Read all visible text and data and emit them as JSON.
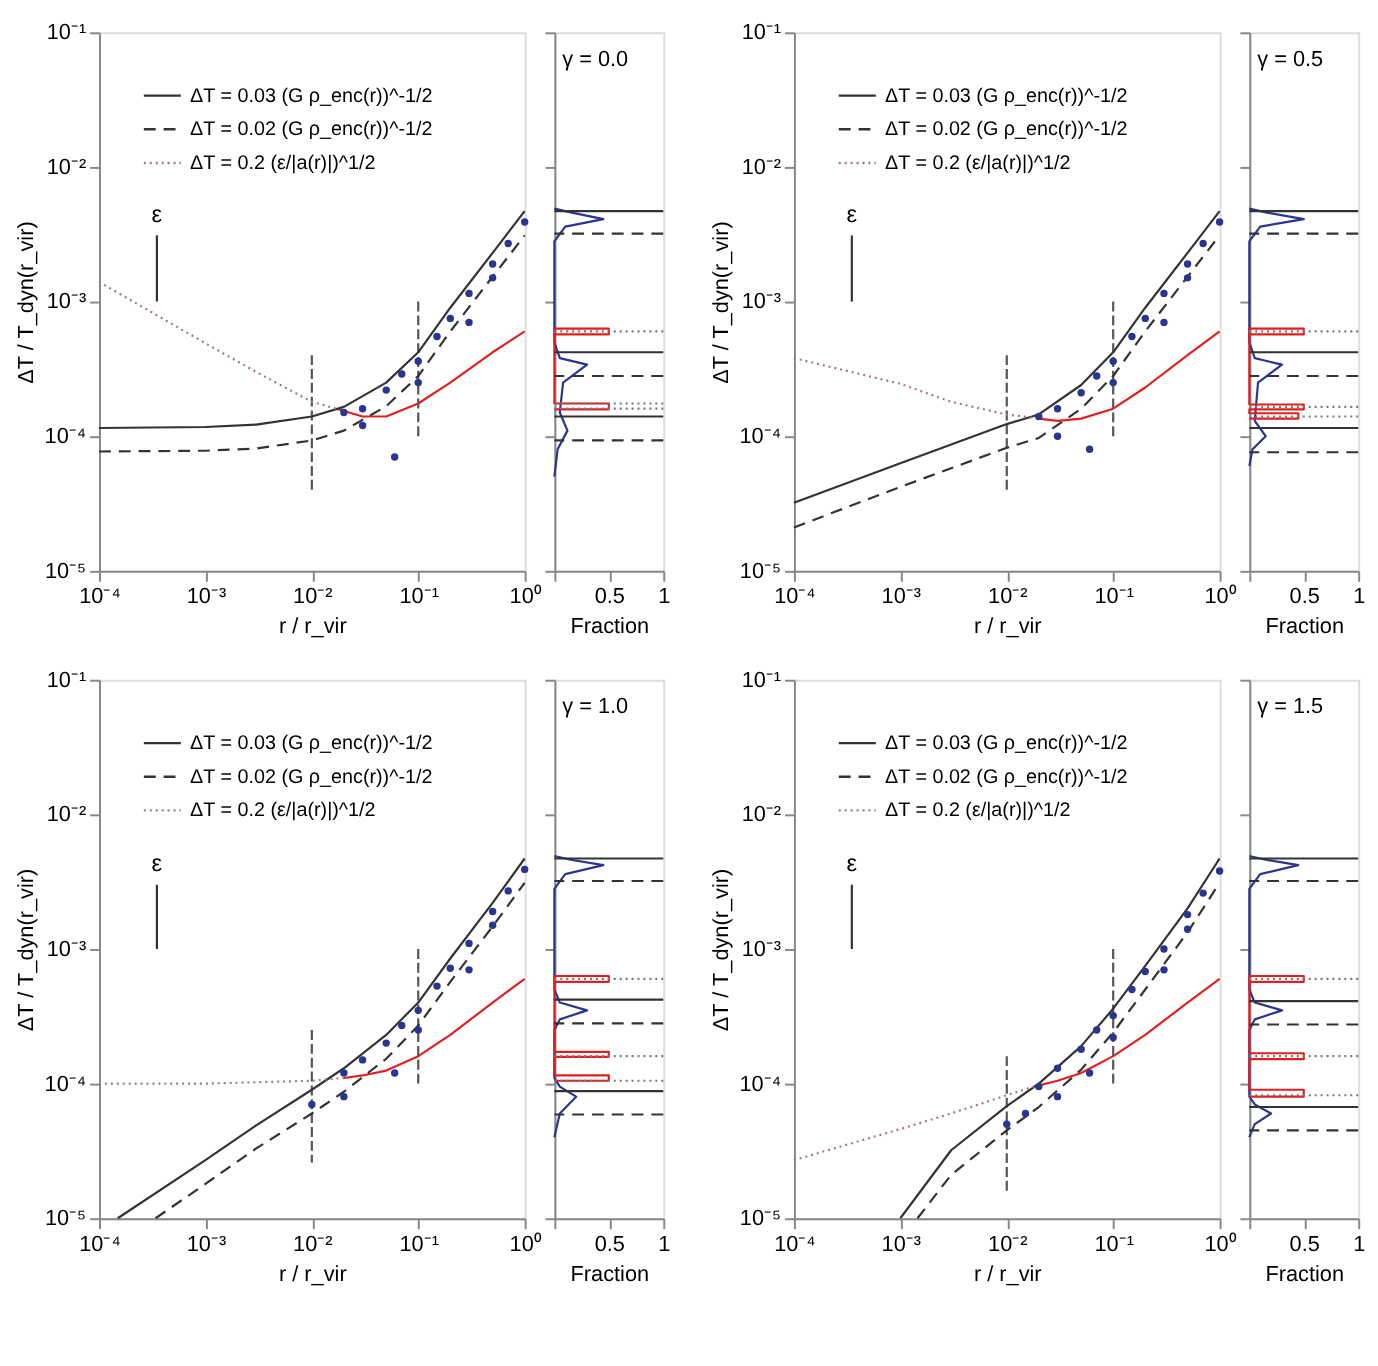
{
  "chart_data": [
    {
      "type": "line",
      "xlabel": "r / r_vir",
      "ylabel": "ΔT / T_dyn(r_vir)",
      "log": "xy",
      "legend": "top left",
      "xlim": [
        0.0001,
        1
      ],
      "ylim": [
        1e-05,
        0.1
      ],
      "xticks": [
        {
          "value": 0.0001,
          "label": "10⁻⁴"
        },
        {
          "value": 0.001,
          "label": "10⁻³"
        },
        {
          "value": 0.01,
          "label": "10⁻²"
        },
        {
          "value": 0.1,
          "label": "10⁻¹"
        },
        {
          "value": 1,
          "label": "10⁰"
        }
      ],
      "yticks": [
        {
          "value": 1e-05,
          "label": "10⁻⁵"
        },
        {
          "value": 0.0001,
          "label": "10⁻⁴"
        },
        {
          "value": 0.001,
          "label": "10⁻³"
        },
        {
          "value": 0.01,
          "label": "10⁻²"
        },
        {
          "value": 0.1,
          "label": "10⁻¹"
        }
      ],
      "series": [
        {
          "name": "ΔT = 0.03 (G ρ_enc(r))^-1/2",
          "color": "#333333",
          "line_style": "solid",
          "x": [
            0.0001,
            0.001,
            0.003,
            0.01,
            0.02,
            0.05,
            0.1,
            0.2,
            0.5,
            1
          ],
          "values": [
            0.000115,
            0.000117,
            0.000122,
            0.00014,
            0.000165,
            0.00025,
            0.00042,
            0.0009,
            0.0023,
            0.0047
          ]
        },
        {
          "name": "ΔT = 0.02 (G ρ_enc(r))^-1/2",
          "color": "#333333",
          "line_style": "dashed",
          "x": [
            0.0001,
            0.001,
            0.003,
            0.01,
            0.02,
            0.05,
            0.1,
            0.2,
            0.5,
            1
          ],
          "values": [
            7.7e-05,
            7.8e-05,
            8.1e-05,
            9.3e-05,
            0.00011,
            0.000167,
            0.00028,
            0.0006,
            0.00153,
            0.0031
          ]
        },
        {
          "name": "ΔT = 0.2 (ε/|a(r)|)^1/2",
          "color": "#aa7777",
          "line_style": "dotted",
          "x": [
            0.0001,
            0.001,
            0.003,
            0.01,
            0.017
          ],
          "values": [
            0.0014,
            0.00049,
            0.0003,
            0.00018,
            0.00016
          ]
        },
        {
          "type": "scatter",
          "color": "#2a3590",
          "x": [
            0.02,
            0.03,
            0.05,
            0.07,
            0.1,
            0.15,
            0.2,
            0.3,
            0.5,
            0.7,
            1,
            0.03,
            0.06,
            0.1,
            0.3,
            0.5
          ],
          "values": [
            0.00015,
            0.00016,
            0.00022,
            0.00029,
            0.00036,
            0.00055,
            0.00075,
            0.00115,
            0.0019,
            0.0027,
            0.0039,
            0.00012,
            7e-05,
            0.00025,
            0.0007,
            0.0015
          ]
        },
        {
          "color": "#e02020",
          "line_style": "solid",
          "x": [
            0.017,
            0.03,
            0.05,
            0.1,
            0.2,
            0.5,
            1
          ],
          "values": [
            0.00016,
            0.00014,
            0.00014,
            0.000175,
            0.00025,
            0.00042,
            0.0006
          ]
        },
        {
          "color": "#555555",
          "line_style": "dashed",
          "x": [
            0.01,
            0.01
          ],
          "values": [
            0.0004,
            4e-05
          ]
        },
        {
          "color": "#555555",
          "line_style": "dashed",
          "x": [
            0.1,
            0.1
          ],
          "values": [
            0.001,
            0.0001
          ]
        },
        {
          "color": "#333333",
          "line_style": "solid",
          "x": [
            0.00035,
            0.00035
          ],
          "values": [
            0.001,
            0.0031
          ]
        }
      ],
      "annotations": [
        "ε"
      ]
    },
    {
      "type": "line",
      "xlabel": "Fraction",
      "log": "y",
      "tick_labels": "x",
      "xlim": [
        0,
        1
      ],
      "ylim": [
        1e-05,
        0.1
      ],
      "xticks": [
        {
          "value": 0,
          "label": null
        },
        0.5,
        1
      ],
      "yticks": [
        {
          "value": 1e-05,
          "label": null
        },
        {
          "value": 0.0001,
          "label": null
        },
        {
          "value": 0.001,
          "label": null
        },
        {
          "value": 0.01,
          "label": null
        },
        {
          "value": 0.1,
          "label": null
        }
      ],
      "series": [
        {
          "color": "#2a3590",
          "line_style": "solid",
          "x": [
            0,
            0.03,
            0.12,
            0.05,
            0.08,
            0.3,
            0.05,
            0,
            0,
            0.1,
            0.45,
            0.15,
            0
          ],
          "values": [
            5e-05,
            8e-05,
            0.00011,
            0.00015,
            0.00025,
            0.00034,
            0.00038,
            0.0005,
            0.0028,
            0.0036,
            0.0041,
            0.0046,
            0.0049
          ]
        },
        {
          "color": "#e02020",
          "line_style": "solid",
          "x": [
            0,
            0.5,
            0.5,
            0,
            0,
            0.5,
            0.5,
            0
          ],
          "values": [
            0.00057,
            0.00057,
            0.00063,
            0.00063,
            0.000175,
            0.000175,
            0.000158,
            0.000158
          ]
        }
      ],
      "ref_lines": [
        {
          "axis": "y",
          "value": 0.0047,
          "line_style": "solid",
          "color": "#333333"
        },
        {
          "axis": "y",
          "value": 0.0032,
          "line_style": "dashed",
          "color": "#333333"
        },
        {
          "axis": "y",
          "value": 0.0006,
          "line_style": "dotted",
          "color": "#777777"
        },
        {
          "axis": "y",
          "value": 0.00042,
          "line_style": "solid",
          "color": "#333333"
        },
        {
          "axis": "y",
          "value": 0.00028,
          "line_style": "dashed",
          "color": "#333333"
        },
        {
          "axis": "y",
          "value": 0.000175,
          "line_style": "dotted",
          "color": "#777777"
        },
        {
          "axis": "y",
          "value": 0.00016,
          "line_style": "dotted",
          "color": "#777777"
        },
        {
          "axis": "y",
          "value": 0.00014,
          "line_style": "solid",
          "color": "#333333"
        },
        {
          "axis": "y",
          "value": 9.3e-05,
          "line_style": "dashed",
          "color": "#333333"
        }
      ],
      "annotations": [
        "γ = 0.0"
      ]
    },
    {
      "type": "line",
      "xlabel": "r / r_vir",
      "ylabel": "ΔT / T_dyn(r_vir)",
      "log": "xy",
      "legend": "top left",
      "xlim": [
        0.0001,
        1
      ],
      "ylim": [
        1e-05,
        0.1
      ],
      "xticks": [
        {
          "value": 0.0001,
          "label": "10⁻⁴"
        },
        {
          "value": 0.001,
          "label": "10⁻³"
        },
        {
          "value": 0.01,
          "label": "10⁻²"
        },
        {
          "value": 0.1,
          "label": "10⁻¹"
        },
        {
          "value": 1,
          "label": "10⁰"
        }
      ],
      "yticks": [
        {
          "value": 1e-05,
          "label": "10⁻⁵"
        },
        {
          "value": 0.0001,
          "label": "10⁻⁴"
        },
        {
          "value": 0.001,
          "label": "10⁻³"
        },
        {
          "value": 0.01,
          "label": "10⁻²"
        },
        {
          "value": 0.1,
          "label": "10⁻¹"
        }
      ],
      "series": [
        {
          "name": "ΔT = 0.03 (G ρ_enc(r))^-1/2",
          "color": "#333333",
          "line_style": "solid",
          "x": [
            0.0001,
            0.001,
            0.01,
            0.02,
            0.05,
            0.1,
            0.2,
            0.5,
            1
          ],
          "values": [
            3.2e-05,
            6.3e-05,
            0.000123,
            0.000145,
            0.00024,
            0.00042,
            0.0009,
            0.0023,
            0.0047
          ]
        },
        {
          "name": "ΔT = 0.02 (G ρ_enc(r))^-1/2",
          "color": "#333333",
          "line_style": "dashed",
          "x": [
            0.0001,
            0.001,
            0.01,
            0.02,
            0.05,
            0.1,
            0.2,
            0.5,
            1
          ],
          "values": [
            2.1e-05,
            4.2e-05,
            8.2e-05,
            9.7e-05,
            0.00016,
            0.00028,
            0.0006,
            0.00153,
            0.0031
          ]
        },
        {
          "name": "ΔT = 0.2 (ε/|a(r)|)^1/2",
          "color": "#aa7777",
          "line_style": "dotted",
          "x": [
            0.0001,
            0.001,
            0.003,
            0.01,
            0.02
          ],
          "values": [
            0.00038,
            0.000245,
            0.00018,
            0.000145,
            0.000135
          ]
        },
        {
          "type": "scatter",
          "color": "#2a3590",
          "x": [
            0.02,
            0.03,
            0.05,
            0.07,
            0.1,
            0.15,
            0.2,
            0.3,
            0.5,
            0.7,
            1,
            0.03,
            0.06,
            0.1,
            0.3,
            0.5
          ],
          "values": [
            0.00014,
            0.00016,
            0.00021,
            0.00028,
            0.00036,
            0.00055,
            0.00075,
            0.00115,
            0.0019,
            0.0027,
            0.0039,
            0.0001,
            8e-05,
            0.00025,
            0.0007,
            0.0015
          ]
        },
        {
          "color": "#e02020",
          "line_style": "solid",
          "x": [
            0.02,
            0.03,
            0.05,
            0.1,
            0.2,
            0.5,
            1
          ],
          "values": [
            0.000135,
            0.00013,
            0.000135,
            0.00016,
            0.00023,
            0.0004,
            0.0006
          ]
        },
        {
          "color": "#555555",
          "line_style": "dashed",
          "x": [
            0.01,
            0.01
          ],
          "values": [
            0.0004,
            4e-05
          ]
        },
        {
          "color": "#555555",
          "line_style": "dashed",
          "x": [
            0.1,
            0.1
          ],
          "values": [
            0.001,
            0.0001
          ]
        },
        {
          "color": "#333333",
          "line_style": "solid",
          "x": [
            0.00035,
            0.00035
          ],
          "values": [
            0.001,
            0.0031
          ]
        }
      ],
      "annotations": [
        "ε"
      ]
    },
    {
      "type": "line",
      "xlabel": "Fraction",
      "log": "y",
      "tick_labels": "x",
      "xlim": [
        0,
        1
      ],
      "ylim": [
        1e-05,
        0.1
      ],
      "xticks": [
        {
          "value": 0,
          "label": null
        },
        0.5,
        1
      ],
      "yticks": [
        {
          "value": 1e-05,
          "label": null
        },
        {
          "value": 0.0001,
          "label": null
        },
        {
          "value": 0.001,
          "label": null
        },
        {
          "value": 0.01,
          "label": null
        },
        {
          "value": 0.1,
          "label": null
        }
      ],
      "series": [
        {
          "color": "#2a3590",
          "line_style": "solid",
          "x": [
            0,
            0.03,
            0.15,
            0.05,
            0.08,
            0.3,
            0.05,
            0,
            0,
            0.1,
            0.5,
            0.15,
            0
          ],
          "values": [
            6e-05,
            8e-05,
            0.0001,
            0.00013,
            0.00025,
            0.00034,
            0.00038,
            0.0005,
            0.0028,
            0.0036,
            0.0041,
            0.0046,
            0.0049
          ]
        },
        {
          "color": "#e02020",
          "line_style": "solid",
          "x": [
            0,
            0.5,
            0.5,
            0,
            0,
            0.5,
            0.5,
            0,
            0,
            0.45,
            0.45,
            0
          ],
          "values": [
            0.00057,
            0.00057,
            0.00063,
            0.00063,
            0.000172,
            0.000172,
            0.000158,
            0.000158,
            0.000148,
            0.000148,
            0.000135,
            0.000135
          ]
        }
      ],
      "ref_lines": [
        {
          "axis": "y",
          "value": 0.0047,
          "line_style": "solid",
          "color": "#333333"
        },
        {
          "axis": "y",
          "value": 0.0032,
          "line_style": "dashed",
          "color": "#333333"
        },
        {
          "axis": "y",
          "value": 0.0006,
          "line_style": "dotted",
          "color": "#777777"
        },
        {
          "axis": "y",
          "value": 0.00042,
          "line_style": "solid",
          "color": "#333333"
        },
        {
          "axis": "y",
          "value": 0.00028,
          "line_style": "dashed",
          "color": "#333333"
        },
        {
          "axis": "y",
          "value": 0.000165,
          "line_style": "dotted",
          "color": "#777777"
        },
        {
          "axis": "y",
          "value": 0.00014,
          "line_style": "dotted",
          "color": "#777777"
        },
        {
          "axis": "y",
          "value": 0.000115,
          "line_style": "solid",
          "color": "#333333"
        },
        {
          "axis": "y",
          "value": 7.6e-05,
          "line_style": "dashed",
          "color": "#333333"
        }
      ],
      "annotations": [
        "γ = 0.5"
      ]
    },
    {
      "type": "line",
      "xlabel": "r / r_vir",
      "ylabel": "ΔT / T_dyn(r_vir)",
      "log": "xy",
      "legend": "top left",
      "xlim": [
        0.0001,
        1
      ],
      "ylim": [
        1e-05,
        0.1
      ],
      "xticks": [
        {
          "value": 0.0001,
          "label": "10⁻⁴"
        },
        {
          "value": 0.001,
          "label": "10⁻³"
        },
        {
          "value": 0.01,
          "label": "10⁻²"
        },
        {
          "value": 0.1,
          "label": "10⁻¹"
        },
        {
          "value": 1,
          "label": "10⁰"
        }
      ],
      "yticks": [
        {
          "value": 1e-05,
          "label": "10⁻⁵"
        },
        {
          "value": 0.0001,
          "label": "10⁻⁴"
        },
        {
          "value": 0.001,
          "label": "10⁻³"
        },
        {
          "value": 0.01,
          "label": "10⁻²"
        },
        {
          "value": 0.1,
          "label": "10⁻¹"
        }
      ],
      "series": [
        {
          "name": "ΔT = 0.03 (G ρ_enc(r))^-1/2",
          "color": "#333333",
          "line_style": "solid",
          "x": [
            0.00015,
            0.001,
            0.003,
            0.01,
            0.02,
            0.05,
            0.1,
            0.2,
            0.5,
            1
          ],
          "values": [
            1e-05,
            2.7e-05,
            4.9e-05,
            9e-05,
            0.00013,
            0.00023,
            0.0004,
            0.00085,
            0.0022,
            0.0047
          ]
        },
        {
          "name": "ΔT = 0.02 (G ρ_enc(r))^-1/2",
          "color": "#333333",
          "line_style": "dashed",
          "x": [
            0.00034,
            0.001,
            0.003,
            0.01,
            0.02,
            0.05,
            0.1,
            0.2,
            0.5,
            1
          ],
          "values": [
            1e-05,
            1.8e-05,
            3.3e-05,
            6e-05,
            8.7e-05,
            0.000153,
            0.00027,
            0.00057,
            0.00147,
            0.0031
          ]
        },
        {
          "name": "ΔT = 0.2 (ε/|a(r)|)^1/2",
          "color": "#aa7777",
          "line_style": "dotted",
          "x": [
            0.0001,
            0.001,
            0.01,
            0.02
          ],
          "values": [
            0.0001,
            0.0001,
            0.000105,
            0.00011
          ]
        },
        {
          "type": "scatter",
          "color": "#2a3590",
          "x": [
            0.02,
            0.03,
            0.05,
            0.07,
            0.1,
            0.15,
            0.2,
            0.3,
            0.5,
            0.7,
            1,
            0.01,
            0.02,
            0.06,
            0.1,
            0.3,
            0.5
          ],
          "values": [
            0.00012,
            0.00015,
            0.0002,
            0.00027,
            0.00035,
            0.00053,
            0.00072,
            0.0011,
            0.0019,
            0.0027,
            0.0039,
            7e-05,
            8e-05,
            0.00012,
            0.00025,
            0.0007,
            0.0015
          ]
        },
        {
          "color": "#e02020",
          "line_style": "solid",
          "x": [
            0.02,
            0.03,
            0.05,
            0.1,
            0.2,
            0.5,
            1
          ],
          "values": [
            0.00011,
            0.000115,
            0.000125,
            0.00016,
            0.00023,
            0.0004,
            0.0006
          ]
        },
        {
          "color": "#555555",
          "line_style": "dashed",
          "x": [
            0.01,
            0.01
          ],
          "values": [
            0.00025,
            2.6e-05
          ]
        },
        {
          "color": "#555555",
          "line_style": "dashed",
          "x": [
            0.1,
            0.1
          ],
          "values": [
            0.001,
            0.0001
          ]
        },
        {
          "color": "#333333",
          "line_style": "solid",
          "x": [
            0.00035,
            0.00035
          ],
          "values": [
            0.001,
            0.003
          ]
        }
      ],
      "annotations": [
        "ε"
      ]
    },
    {
      "type": "line",
      "xlabel": "Fraction",
      "log": "y",
      "tick_labels": "x",
      "xlim": [
        0,
        1
      ],
      "ylim": [
        1e-05,
        0.1
      ],
      "xticks": [
        {
          "value": 0,
          "label": null
        },
        0.5,
        1
      ],
      "yticks": [
        {
          "value": 1e-05,
          "label": null
        },
        {
          "value": 0.0001,
          "label": null
        },
        {
          "value": 0.001,
          "label": null
        },
        {
          "value": 0.01,
          "label": null
        },
        {
          "value": 0.1,
          "label": null
        }
      ],
      "series": [
        {
          "color": "#2a3590",
          "line_style": "solid",
          "x": [
            0,
            0.05,
            0.2,
            0.05,
            0,
            0,
            0.05,
            0.3,
            0.05,
            0,
            0,
            0.1,
            0.45,
            0.15,
            0
          ],
          "values": [
            4e-05,
            6e-05,
            8e-05,
            9.5e-05,
            0.00011,
            0.00025,
            0.0003,
            0.00035,
            0.0004,
            0.0005,
            0.0028,
            0.0036,
            0.0042,
            0.0046,
            0.0049
          ]
        },
        {
          "color": "#e02020",
          "line_style": "solid",
          "x": [
            0,
            0.5,
            0.5,
            0,
            0,
            0.5,
            0.5,
            0,
            0,
            0.5,
            0.5,
            0
          ],
          "values": [
            0.00057,
            0.00057,
            0.00063,
            0.00063,
            0.000172,
            0.000172,
            0.000158,
            0.000158,
            0.000115,
            0.000115,
            0.000105,
            0.000105
          ]
        }
      ],
      "ref_lines": [
        {
          "axis": "y",
          "value": 0.0047,
          "line_style": "solid",
          "color": "#333333"
        },
        {
          "axis": "y",
          "value": 0.0032,
          "line_style": "dashed",
          "color": "#333333"
        },
        {
          "axis": "y",
          "value": 0.0006,
          "line_style": "dotted",
          "color": "#777777"
        },
        {
          "axis": "y",
          "value": 0.00042,
          "line_style": "solid",
          "color": "#333333"
        },
        {
          "axis": "y",
          "value": 0.00028,
          "line_style": "dashed",
          "color": "#333333"
        },
        {
          "axis": "y",
          "value": 0.00016,
          "line_style": "dotted",
          "color": "#777777"
        },
        {
          "axis": "y",
          "value": 0.000105,
          "line_style": "dotted",
          "color": "#777777"
        },
        {
          "axis": "y",
          "value": 8.8e-05,
          "line_style": "solid",
          "color": "#333333"
        },
        {
          "axis": "y",
          "value": 5.9e-05,
          "line_style": "dashed",
          "color": "#333333"
        }
      ],
      "annotations": [
        "γ = 1.0"
      ]
    },
    {
      "type": "line",
      "xlabel": "r / r_vir",
      "ylabel": "ΔT / T_dyn(r_vir)",
      "log": "xy",
      "legend": "top left",
      "xlim": [
        0.0001,
        1
      ],
      "ylim": [
        1e-05,
        0.1
      ],
      "xticks": [
        {
          "value": 0.0001,
          "label": "10⁻⁴"
        },
        {
          "value": 0.001,
          "label": "10⁻³"
        },
        {
          "value": 0.01,
          "label": "10⁻²"
        },
        {
          "value": 0.1,
          "label": "10⁻¹"
        },
        {
          "value": 1,
          "label": "10⁰"
        }
      ],
      "yticks": [
        {
          "value": 1e-05,
          "label": "10⁻⁵"
        },
        {
          "value": 0.0001,
          "label": "10⁻⁴"
        },
        {
          "value": 0.001,
          "label": "10⁻³"
        },
        {
          "value": 0.01,
          "label": "10⁻²"
        },
        {
          "value": 0.1,
          "label": "10⁻¹"
        }
      ],
      "series": [
        {
          "name": "ΔT = 0.03 (G ρ_enc(r))^-1/2",
          "color": "#333333",
          "line_style": "solid",
          "x": [
            0.001,
            0.003,
            0.01,
            0.02,
            0.05,
            0.1,
            0.2,
            0.5,
            1
          ],
          "values": [
            1e-05,
            3.2e-05,
            6.8e-05,
            0.0001,
            0.00019,
            0.00036,
            0.00075,
            0.002,
            0.0047
          ]
        },
        {
          "name": "ΔT = 0.02 (G ρ_enc(r))^-1/2",
          "color": "#333333",
          "line_style": "dashed",
          "x": [
            0.00145,
            0.003,
            0.01,
            0.02,
            0.05,
            0.1,
            0.2,
            0.5,
            1
          ],
          "values": [
            1e-05,
            2.1e-05,
            4.5e-05,
            6.7e-05,
            0.000127,
            0.00024,
            0.0005,
            0.00133,
            0.0031
          ]
        },
        {
          "name": "ΔT = 0.2 (ε/|a(r)|)^1/2",
          "color": "#aa7777",
          "line_style": "dotted",
          "x": [
            0.0001,
            0.001,
            0.003,
            0.01,
            0.018
          ],
          "values": [
            2.7e-05,
            4.6e-05,
            6e-05,
            8.2e-05,
            9.5e-05
          ]
        },
        {
          "type": "scatter",
          "color": "#2a3590",
          "x": [
            0.02,
            0.03,
            0.05,
            0.07,
            0.1,
            0.15,
            0.2,
            0.3,
            0.5,
            0.7,
            1,
            0.01,
            0.015,
            0.03,
            0.06,
            0.1,
            0.3,
            0.5
          ],
          "values": [
            9.5e-05,
            0.00013,
            0.00018,
            0.00025,
            0.00032,
            0.0005,
            0.00068,
            0.001,
            0.0018,
            0.0026,
            0.0038,
            5e-05,
            6e-05,
            8e-05,
            0.00012,
            0.00022,
            0.0007,
            0.0014
          ]
        },
        {
          "color": "#e02020",
          "line_style": "solid",
          "x": [
            0.018,
            0.03,
            0.05,
            0.1,
            0.2,
            0.5,
            1
          ],
          "values": [
            9.5e-05,
            0.000105,
            0.00012,
            0.00016,
            0.00023,
            0.0004,
            0.0006
          ]
        },
        {
          "color": "#555555",
          "line_style": "dashed",
          "x": [
            0.01,
            0.01
          ],
          "values": [
            0.00016,
            1.6e-05
          ]
        },
        {
          "color": "#555555",
          "line_style": "dashed",
          "x": [
            0.1,
            0.1
          ],
          "values": [
            0.001,
            0.0001
          ]
        },
        {
          "color": "#333333",
          "line_style": "solid",
          "x": [
            0.00035,
            0.00035
          ],
          "values": [
            0.001,
            0.003
          ]
        }
      ],
      "annotations": [
        "ε"
      ]
    },
    {
      "type": "line",
      "xlabel": "Fraction",
      "log": "y",
      "tick_labels": "x",
      "xlim": [
        0,
        1
      ],
      "ylim": [
        1e-05,
        0.1
      ],
      "xticks": [
        {
          "value": 0,
          "label": null
        },
        0.5,
        1
      ],
      "yticks": [
        {
          "value": 1e-05,
          "label": null
        },
        {
          "value": 0.0001,
          "label": null
        },
        {
          "value": 0.001,
          "label": null
        },
        {
          "value": 0.01,
          "label": null
        },
        {
          "value": 0.1,
          "label": null
        }
      ],
      "series": [
        {
          "color": "#2a3590",
          "line_style": "solid",
          "x": [
            0,
            0.05,
            0.2,
            0.05,
            0,
            0,
            0.05,
            0.3,
            0.05,
            0,
            0,
            0.1,
            0.45,
            0.15,
            0
          ],
          "values": [
            4e-05,
            5e-05,
            6e-05,
            7e-05,
            8e-05,
            0.00025,
            0.0003,
            0.00035,
            0.0004,
            0.0005,
            0.0028,
            0.0036,
            0.0042,
            0.0046,
            0.0049
          ]
        },
        {
          "color": "#e02020",
          "line_style": "solid",
          "x": [
            0,
            0.5,
            0.5,
            0,
            0,
            0.5,
            0.5,
            0,
            0,
            0.5,
            0.5,
            0
          ],
          "values": [
            0.00057,
            0.00057,
            0.00063,
            0.00063,
            0.000168,
            0.000168,
            0.000152,
            0.000152,
            9e-05,
            9e-05,
            8e-05,
            8e-05
          ]
        }
      ],
      "ref_lines": [
        {
          "axis": "y",
          "value": 0.0047,
          "line_style": "solid",
          "color": "#333333"
        },
        {
          "axis": "y",
          "value": 0.0032,
          "line_style": "dashed",
          "color": "#333333"
        },
        {
          "axis": "y",
          "value": 0.0006,
          "line_style": "dotted",
          "color": "#777777"
        },
        {
          "axis": "y",
          "value": 0.00041,
          "line_style": "solid",
          "color": "#333333"
        },
        {
          "axis": "y",
          "value": 0.000275,
          "line_style": "dashed",
          "color": "#333333"
        },
        {
          "axis": "y",
          "value": 0.00016,
          "line_style": "dotted",
          "color": "#777777"
        },
        {
          "axis": "y",
          "value": 8.2e-05,
          "line_style": "dotted",
          "color": "#777777"
        },
        {
          "axis": "y",
          "value": 6.7e-05,
          "line_style": "solid",
          "color": "#333333"
        },
        {
          "axis": "y",
          "value": 4.5e-05,
          "line_style": "dashed",
          "color": "#333333"
        }
      ],
      "annotations": [
        "γ = 1.5"
      ]
    }
  ]
}
